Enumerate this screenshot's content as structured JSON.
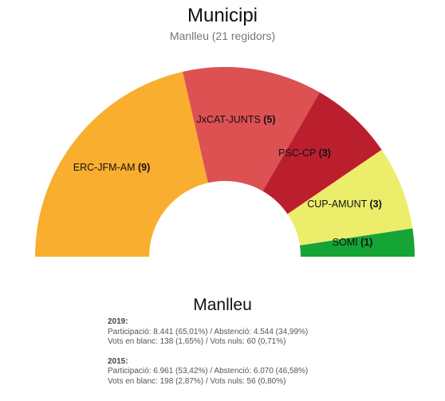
{
  "chart_data": {
    "type": "hemicycle",
    "title": "Municipi",
    "subtitle": "Manlleu (21 regidors)",
    "total_seats": 21,
    "parties": [
      {
        "name": "ERC-JFM-AM",
        "seats": 9,
        "color": "#f9ae30"
      },
      {
        "name": "JxCAT-JUNTS",
        "seats": 5,
        "color": "#dd5153"
      },
      {
        "name": "PSC-CP",
        "seats": 3,
        "color": "#bb1f2e"
      },
      {
        "name": "CUP-AMUNT",
        "seats": 3,
        "color": "#eded6c"
      },
      {
        "name": "SOMI",
        "seats": 1,
        "color": "#15a436"
      }
    ]
  },
  "municipality": {
    "name": "Manlleu",
    "elections": [
      {
        "year": "2019:",
        "line1": "Participació: 8.441 (65,01%) / Abstenció: 4.544 (34,99%)",
        "line2": "Vots en blanc: 138 (1,65%) / Vots nuls: 60 (0,71%)"
      },
      {
        "year": "2015:",
        "line1": "Participació: 6.961 (53,42%) / Abstenció: 6.070 (46,58%)",
        "line2": "Vots en blanc: 198 (2,87%) / Vots nuls: 56 (0,80%)"
      }
    ]
  }
}
